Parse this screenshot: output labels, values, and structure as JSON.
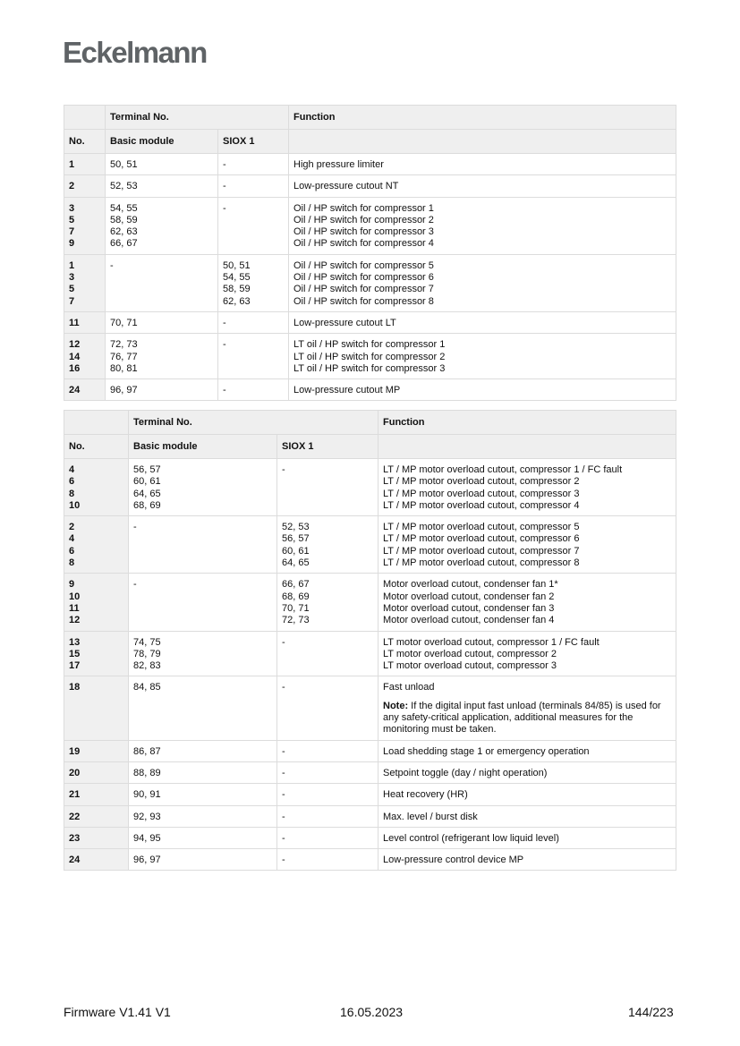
{
  "header": {
    "logo": "Eckelmann"
  },
  "table1": {
    "col_terminal": "Terminal No.",
    "col_function": "Function",
    "col_no": "No.",
    "col_basic": "Basic module",
    "col_siox": "SIOX 1",
    "rows": [
      {
        "no": "1",
        "basic": "50, 51",
        "siox": "-",
        "function": "High pressure limiter"
      },
      {
        "no": "2",
        "basic": "52, 53",
        "siox": "-",
        "function": "Low-pressure cutout NT"
      },
      {
        "no": "3\n5\n7\n9",
        "basic": "54, 55\n58, 59\n62, 63\n66, 67",
        "siox": "-",
        "function": "Oil / HP switch for compressor 1\nOil / HP switch for compressor 2\nOil / HP switch for compressor 3\nOil / HP switch for compressor 4"
      },
      {
        "no": "1\n3\n5\n7",
        "basic": "-",
        "siox": "50, 51\n54, 55\n58, 59\n62, 63",
        "function": "Oil / HP switch for compressor 5\nOil / HP switch for compressor 6\nOil / HP switch for compressor 7\nOil / HP switch for compressor 8"
      },
      {
        "no": "11",
        "basic": "70, 71",
        "siox": "-",
        "function": "Low-pressure cutout LT"
      },
      {
        "no": "12\n14\n16",
        "basic": "72, 73\n76, 77\n80, 81",
        "siox": "-",
        "function": "LT oil / HP switch for compressor 1\nLT oil / HP switch for compressor 2\nLT oil / HP switch for compressor 3"
      },
      {
        "no": "24",
        "basic": "96, 97",
        "siox": "-",
        "function": "Low-pressure cutout MP"
      }
    ]
  },
  "table2": {
    "col_terminal": "Terminal No.",
    "col_function": "Function",
    "col_no": "No.",
    "col_basic": "Basic module",
    "col_siox": "SIOX 1",
    "rows": [
      {
        "no": "4\n6\n8\n10",
        "basic": "56, 57\n60, 61\n64, 65\n68, 69",
        "siox": "-",
        "function": "LT / MP motor overload cutout, compressor 1 / FC fault\nLT / MP motor overload cutout, compressor 2\nLT / MP motor overload cutout, compressor 3\nLT / MP motor overload cutout, compressor 4"
      },
      {
        "no": "2\n4\n6\n8",
        "basic": "-",
        "siox": "52, 53\n56, 57\n60, 61\n64, 65",
        "function": "LT / MP motor overload cutout, compressor 5\nLT / MP motor overload cutout, compressor 6\nLT / MP motor overload cutout, compressor 7\nLT / MP motor overload cutout, compressor 8"
      },
      {
        "no": "9\n10\n11\n12",
        "basic": " -",
        "siox": "66, 67\n68, 69\n70, 71\n72, 73",
        "function": "Motor overload cutout, condenser fan 1*\nMotor overload cutout, condenser fan 2\nMotor overload cutout, condenser fan 3\nMotor overload cutout, condenser fan 4"
      },
      {
        "no": "13\n15\n17",
        "basic": "74, 75\n78, 79\n82, 83",
        "siox": "-",
        "function": "LT motor overload cutout, compressor 1 / FC fault\nLT motor overload cutout, compressor 2\nLT motor overload cutout, compressor 3"
      },
      {
        "no": "18",
        "basic": "84, 85",
        "siox": "-",
        "function": "Fast unload",
        "note_label": "Note:",
        "note": " If the digital input fast unload (terminals 84/85) is used for any safety-critical application, additional measures for the monitoring must be taken."
      },
      {
        "no": "19",
        "basic": "86, 87",
        "siox": "-",
        "function": "Load shedding stage 1 or emergency operation"
      },
      {
        "no": "20",
        "basic": "88, 89",
        "siox": "-",
        "function": "Setpoint toggle (day / night operation)"
      },
      {
        "no": "21",
        "basic": "90, 91",
        "siox": "-",
        "function": "Heat recovery (HR)"
      },
      {
        "no": "22",
        "basic": "92, 93",
        "siox": "-",
        "function": "Max. level / burst disk"
      },
      {
        "no": "23",
        "basic": "94, 95",
        "siox": "-",
        "function": "Level control (refrigerant low liquid level)"
      },
      {
        "no": "24",
        "basic": "96, 97",
        "siox": "-",
        "function": "Low-pressure control device MP"
      }
    ]
  },
  "footer": {
    "left": "Firmware V1.41 V1",
    "center": "16.05.2023",
    "right": "144/223"
  }
}
